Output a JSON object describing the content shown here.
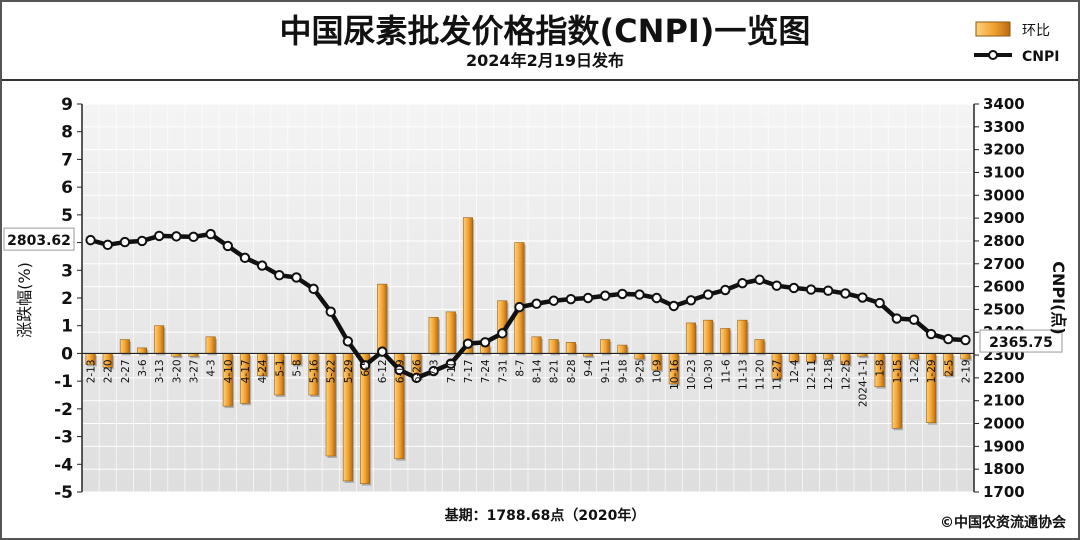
{
  "chart_data": {
    "type": "bar+line",
    "title": "中国尿素批发价格指数(CNPI)一览图",
    "subtitle": "2024年2月19日发布",
    "ylabel_left": "涨跌幅(%)",
    "ylabel_right": "CNPI(点)",
    "footer_base": "基期：1788.68点（2020年）",
    "copyright": "©中国农资流通协会",
    "ylim_left": [
      -5,
      9
    ],
    "ylim_right": [
      1700,
      3400
    ],
    "yticks_left": [
      "-5",
      "-4",
      "-3",
      "-2",
      "-1",
      "0",
      "1",
      "2",
      "3",
      "4",
      "5",
      "6",
      "7",
      "8",
      "9"
    ],
    "yticks_right": [
      "1700",
      "1800",
      "1900",
      "2000",
      "2100",
      "2200",
      "2300",
      "2400",
      "2500",
      "2600",
      "2700",
      "2800",
      "2900",
      "3000",
      "3100",
      "3200",
      "3300",
      "3400"
    ],
    "categories": [
      "2-13",
      "2-20",
      "2-27",
      "3-6",
      "3-13",
      "3-20",
      "3-27",
      "4-3",
      "4-10",
      "4-17",
      "4-24",
      "5-1",
      "5-8",
      "5-16",
      "5-22",
      "5-29",
      "6-5",
      "6-12",
      "6-19",
      "6-26",
      "7-3",
      "7-10",
      "7-17",
      "7-24",
      "7-31",
      "8-7",
      "8-14",
      "8-21",
      "8-28",
      "9-4",
      "9-11",
      "9-18",
      "9-25",
      "10-9",
      "10-16",
      "10-23",
      "10-30",
      "11-6",
      "11-13",
      "11-20",
      "11-27",
      "12-4",
      "12-11",
      "12-18",
      "12-25",
      "2024-1-1",
      "1-8",
      "1-15",
      "1-22",
      "1-29",
      "2-5",
      "2-19"
    ],
    "series": [
      {
        "name": "环比",
        "type": "bar",
        "color": "#f0a030",
        "values": [
          -0.4,
          -0.5,
          0.5,
          0.2,
          1.0,
          -0.1,
          -0.1,
          0.6,
          -1.9,
          -1.8,
          -0.8,
          -1.5,
          -0.4,
          -1.5,
          -3.7,
          -4.6,
          -4.7,
          2.5,
          -3.8,
          -0.9,
          1.3,
          1.5,
          4.9,
          0.3,
          1.9,
          4.0,
          0.6,
          0.5,
          0.4,
          -0.1,
          0.5,
          0.3,
          -0.2,
          -0.6,
          -1.1,
          1.1,
          1.2,
          0.9,
          1.2,
          0.5,
          -0.9,
          -0.3,
          -0.3,
          -0.2,
          -0.4,
          -0.1,
          -1.2,
          -2.7,
          -0.2,
          -2.5,
          -0.8,
          -0.2
        ]
      },
      {
        "name": "CNPI",
        "type": "line",
        "color": "#111111",
        "values": [
          2803.62,
          2783,
          2795,
          2800,
          2822,
          2820,
          2818,
          2830,
          2778,
          2726,
          2692,
          2650,
          2640,
          2590,
          2490,
          2360,
          2255,
          2315,
          2235,
          2200,
          2230,
          2262,
          2350,
          2356,
          2395,
          2510,
          2525,
          2538,
          2545,
          2550,
          2560,
          2568,
          2565,
          2550,
          2515,
          2540,
          2565,
          2585,
          2615,
          2630,
          2604,
          2594,
          2587,
          2582,
          2570,
          2552,
          2528,
          2460,
          2455,
          2392,
          2370,
          2365.75
        ]
      }
    ],
    "labels": {
      "first": "2803.62",
      "last": "2365.75"
    },
    "legend_position": "top-right",
    "grid": true
  }
}
